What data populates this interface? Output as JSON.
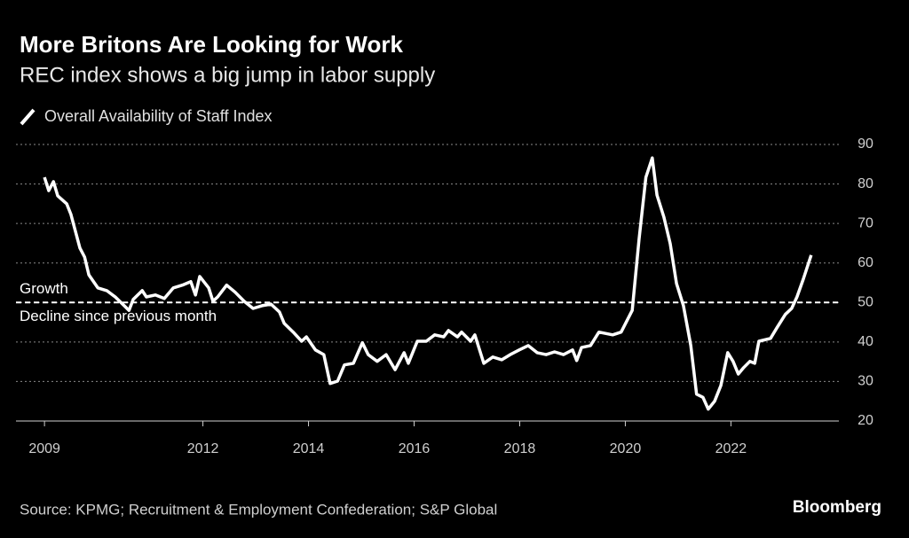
{
  "chart_data": {
    "type": "line",
    "title": "More Britons Are Looking for Work",
    "subtitle": "REC index shows a big jump in labor supply",
    "source": "Source: KPMG; Recruitment & Employment Confederation; S&P Global",
    "brand": "Bloomberg",
    "x": [
      2009.0,
      2009.08,
      2009.17,
      2009.25,
      2009.42,
      2009.5,
      2009.67,
      2009.76,
      2009.84,
      2010.01,
      2010.18,
      2010.34,
      2010.51,
      2010.6,
      2010.68,
      2010.85,
      2010.93,
      2011.1,
      2011.27,
      2011.44,
      2011.61,
      2011.77,
      2011.86,
      2011.94,
      2012.11,
      2012.19,
      2012.28,
      2012.45,
      2012.61,
      2012.78,
      2012.95,
      2013.12,
      2013.29,
      2013.45,
      2013.54,
      2013.71,
      2013.87,
      2013.96,
      2014.13,
      2014.29,
      2014.41,
      2014.55,
      2014.68,
      2014.85,
      2015.02,
      2015.13,
      2015.3,
      2015.47,
      2015.64,
      2015.81,
      2015.89,
      2016.06,
      2016.23,
      2016.39,
      2016.56,
      2016.65,
      2016.82,
      2016.9,
      2017.07,
      2017.15,
      2017.32,
      2017.49,
      2017.66,
      2017.82,
      2017.99,
      2018.16,
      2018.33,
      2018.5,
      2018.66,
      2018.83,
      2019.0,
      2019.08,
      2019.17,
      2019.34,
      2019.5,
      2019.76,
      2019.92,
      2020.13,
      2020.26,
      2020.39,
      2020.51,
      2020.6,
      2020.73,
      2020.85,
      2020.97,
      2021.1,
      2021.24,
      2021.35,
      2021.47,
      2021.57,
      2021.69,
      2021.81,
      2021.94,
      2022.04,
      2022.14,
      2022.24,
      2022.36,
      2022.45,
      2022.53,
      2022.75,
      2022.87,
      2023.03,
      2023.15,
      2023.25,
      2023.37,
      2023.52
    ],
    "series": [
      {
        "name": "Overall Availability of Staff Index",
        "color": "#ffffff",
        "values": [
          81.7,
          78.3,
          80.6,
          77.0,
          75.0,
          72.3,
          63.8,
          61.5,
          57.0,
          53.7,
          53.0,
          51.4,
          49.2,
          48.0,
          50.8,
          53.0,
          51.4,
          51.9,
          51.0,
          53.7,
          54.4,
          55.3,
          51.9,
          56.6,
          53.7,
          50.3,
          51.4,
          54.4,
          52.6,
          50.3,
          48.5,
          49.2,
          49.6,
          47.6,
          44.7,
          42.5,
          40.2,
          41.3,
          38.0,
          36.8,
          29.5,
          30.1,
          34.2,
          34.6,
          39.8,
          36.8,
          35.1,
          36.8,
          33.0,
          37.3,
          34.6,
          40.2,
          40.2,
          41.8,
          41.3,
          42.9,
          41.3,
          42.5,
          40.2,
          41.8,
          34.6,
          36.2,
          35.5,
          36.8,
          38.0,
          39.1,
          37.3,
          36.8,
          37.5,
          36.8,
          38.0,
          35.3,
          38.6,
          39.1,
          42.5,
          41.8,
          42.5,
          48.0,
          66.0,
          81.7,
          86.6,
          77.2,
          71.6,
          64.9,
          54.8,
          49.2,
          39.1,
          26.8,
          26.0,
          23.0,
          25.0,
          29.0,
          37.3,
          35.1,
          31.9,
          33.5,
          35.1,
          34.6,
          40.2,
          40.9,
          43.6,
          47.0,
          48.5,
          51.4,
          55.9,
          62.0
        ]
      }
    ],
    "xlim": [
      2008.46,
      2023.96
    ],
    "xticks": [
      2009,
      2012,
      2014,
      2016,
      2018,
      2020,
      2022
    ],
    "ylim": [
      20,
      90
    ],
    "yticks": [
      20,
      30,
      40,
      50,
      60,
      70,
      80,
      90
    ],
    "grid": true,
    "reference_line": {
      "value": 50,
      "labels": [
        "Growth",
        "Decline since previous month"
      ]
    }
  }
}
